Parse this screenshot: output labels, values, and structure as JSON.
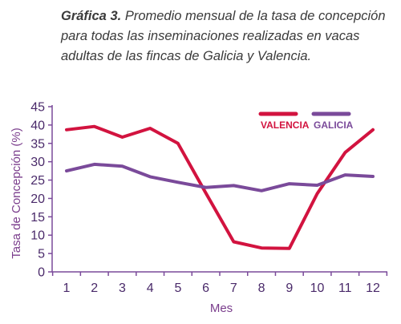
{
  "title_prefix": "Gráfica 3.",
  "title_text": "Promedio mensual de la tasa de concepción para todas las inseminaciones realizadas en vacas adultas de las fincas de Galicia y Valencia.",
  "chart_data": {
    "type": "line",
    "x": [
      1,
      2,
      3,
      4,
      5,
      6,
      7,
      8,
      9,
      10,
      11,
      12
    ],
    "xlabel": "Mes",
    "ylabel": "Tasa de Concepción (%)",
    "ylim": [
      0,
      45
    ],
    "yticks": [
      0,
      5,
      10,
      15,
      20,
      25,
      30,
      35,
      40,
      45
    ],
    "grid": false,
    "legend_position": "top-right",
    "series": [
      {
        "name": "VALENCIA",
        "color": "#d2133f",
        "values": [
          38.7,
          39.6,
          36.7,
          39.1,
          35.0,
          21.5,
          8.2,
          6.5,
          6.4,
          21.3,
          32.5,
          38.7
        ]
      },
      {
        "name": "GALICIA",
        "color": "#7a4a9a",
        "values": [
          27.5,
          29.3,
          28.8,
          25.9,
          24.4,
          23.0,
          23.5,
          22.1,
          24.0,
          23.6,
          26.4,
          26.0
        ]
      }
    ]
  }
}
